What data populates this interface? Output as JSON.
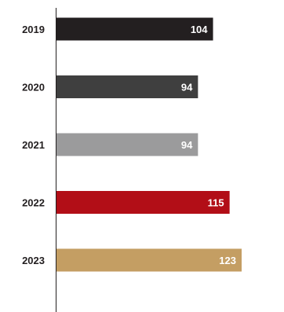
{
  "chart_data": {
    "type": "bar",
    "orientation": "horizontal",
    "categories": [
      "2019",
      "2020",
      "2021",
      "2022",
      "2023"
    ],
    "values": [
      104,
      94,
      94,
      115,
      123
    ],
    "colors": [
      "#231f20",
      "#3f3f3f",
      "#9b9b9c",
      "#b20e17",
      "#c49e63"
    ],
    "xlim": [
      0,
      123
    ],
    "grid": false,
    "legend": "none"
  }
}
